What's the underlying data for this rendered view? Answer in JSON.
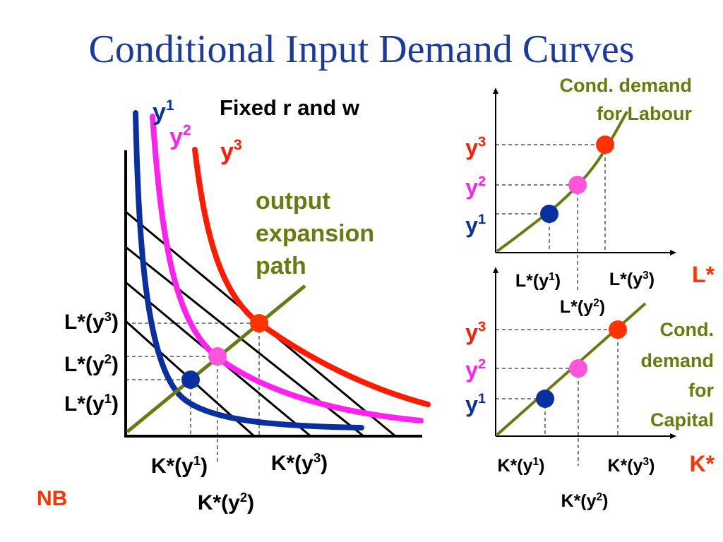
{
  "slide": {
    "title": "Conditional Input Demand Curves",
    "nb": "NB",
    "colors": {
      "title": "#1a3aa0",
      "y1": "#0a2f9e",
      "y2": "#ff22ee",
      "y3": "#ff1a00",
      "expansion": "#6b7a10",
      "points_y2": "#ff55dd",
      "points_y3": "#ff3300",
      "nb": "#ff3300"
    }
  },
  "left_diagram": {
    "header": "Fixed r and w",
    "isoquants": [
      {
        "base": "y",
        "sup": "1"
      },
      {
        "base": "y",
        "sup": "2"
      },
      {
        "base": "y",
        "sup": "3"
      }
    ],
    "expansion_label_lines": [
      "output",
      "expansion",
      "path"
    ],
    "l_ticks": [
      {
        "base": "L*(y",
        "sup": "3",
        "end": ")"
      },
      {
        "base": "L*(y",
        "sup": "2",
        "end": ")"
      },
      {
        "base": "L*(y",
        "sup": "1",
        "end": ")"
      }
    ],
    "k_ticks": [
      {
        "base": "K*(y",
        "sup": "1",
        "end": ")"
      },
      {
        "base": "K*(y",
        "sup": "2",
        "end": ")"
      },
      {
        "base": "K*(y",
        "sup": "3",
        "end": ")"
      }
    ]
  },
  "labour_chart": {
    "caption_lines": [
      "Cond. demand",
      "for Labour"
    ],
    "axis_label": "L*",
    "y_levels": [
      {
        "base": "y",
        "sup": "3"
      },
      {
        "base": "y",
        "sup": "2"
      },
      {
        "base": "y",
        "sup": "1"
      }
    ],
    "x_ticks": [
      {
        "base": "L*(y",
        "sup": "1",
        "end": ")"
      },
      {
        "base": "L*(y",
        "sup": "2",
        "end": ")"
      },
      {
        "base": "L*(y",
        "sup": "3",
        "end": ")"
      }
    ]
  },
  "capital_chart": {
    "caption_lines": [
      "Cond.",
      "demand",
      "for",
      "Capital"
    ],
    "axis_label": "K*",
    "y_levels": [
      {
        "base": "y",
        "sup": "3"
      },
      {
        "base": "y",
        "sup": "2"
      },
      {
        "base": "y",
        "sup": "1"
      }
    ],
    "x_ticks": [
      {
        "base": "K*(y",
        "sup": "1",
        "end": ")"
      },
      {
        "base": "K*(y",
        "sup": "2",
        "end": ")"
      },
      {
        "base": "K*(y",
        "sup": "3",
        "end": ")"
      }
    ]
  }
}
